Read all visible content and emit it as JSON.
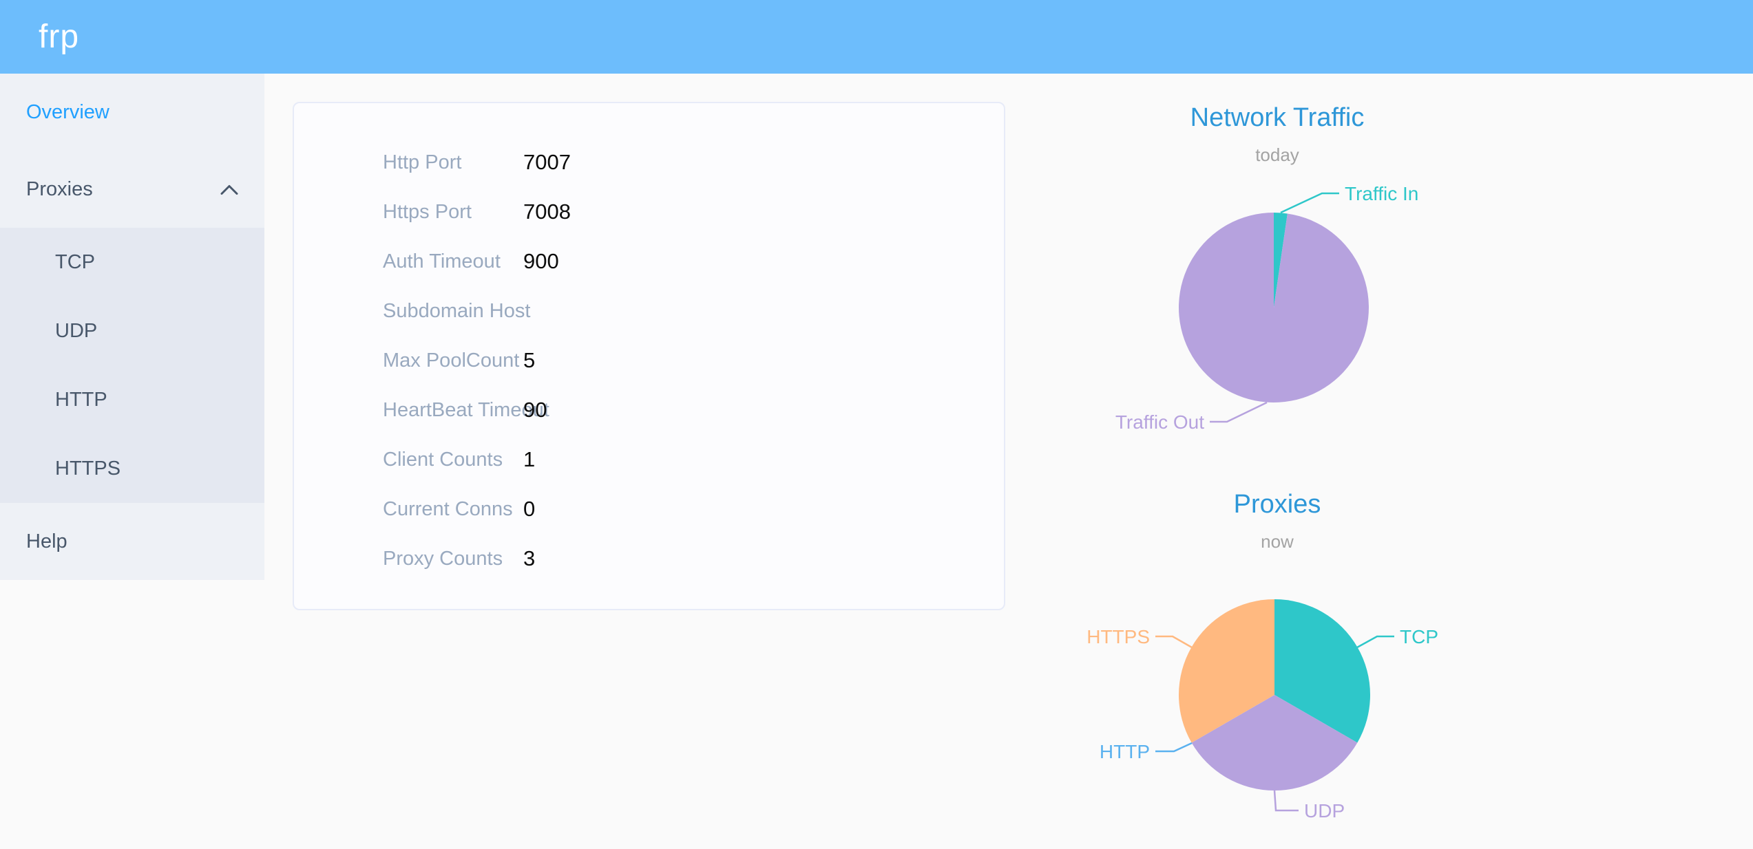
{
  "header": {
    "logo": "frp"
  },
  "sidebar": {
    "items": [
      {
        "label": "Overview",
        "active": true
      },
      {
        "label": "Proxies",
        "expanded": true
      },
      {
        "label": "TCP"
      },
      {
        "label": "UDP"
      },
      {
        "label": "HTTP"
      },
      {
        "label": "HTTPS"
      },
      {
        "label": "Help"
      }
    ]
  },
  "config_card": {
    "rows": [
      {
        "label": "Http Port",
        "value": "7007"
      },
      {
        "label": "Https Port",
        "value": "7008"
      },
      {
        "label": "Auth Timeout",
        "value": "900"
      },
      {
        "label": "Subdomain Host",
        "value": ""
      },
      {
        "label": "Max PoolCount",
        "value": "5"
      },
      {
        "label": "HeartBeat Timeout",
        "value": "90"
      },
      {
        "label": "Client Counts",
        "value": "1"
      },
      {
        "label": "Current Conns",
        "value": "0"
      },
      {
        "label": "Proxy Counts",
        "value": "3"
      }
    ]
  },
  "chart_data": [
    {
      "type": "pie",
      "title": "Network Traffic",
      "subtitle": "today",
      "legend_position": "none",
      "values_are": "percent share estimated from arc angles",
      "series": [
        {
          "name": "Traffic In",
          "value": 2.3,
          "color": "#2ec7c9"
        },
        {
          "name": "Traffic Out",
          "value": 97.7,
          "color": "#b6a2de"
        }
      ]
    },
    {
      "type": "pie",
      "title": "Proxies",
      "subtitle": "now",
      "legend_position": "none",
      "values_are": "proxy counts per type (total matches Proxy Counts = 3)",
      "series": [
        {
          "name": "TCP",
          "value": 1,
          "color": "#2ec7c9"
        },
        {
          "name": "UDP",
          "value": 1,
          "color": "#b6a2de"
        },
        {
          "name": "HTTP",
          "value": 0,
          "color": "#5ab1ef"
        },
        {
          "name": "HTTPS",
          "value": 1,
          "color": "#ffb980"
        }
      ]
    }
  ],
  "colors": {
    "header_bg": "#6dbdfc",
    "sidebar_bg": "#eef1f6",
    "submenu_bg": "#e4e8f1",
    "menu_text": "#48576a",
    "menu_active": "#20a0ff",
    "card_label": "#99a9bf",
    "chart_title": "#2e97d8",
    "page_bg": "#fafafa"
  }
}
